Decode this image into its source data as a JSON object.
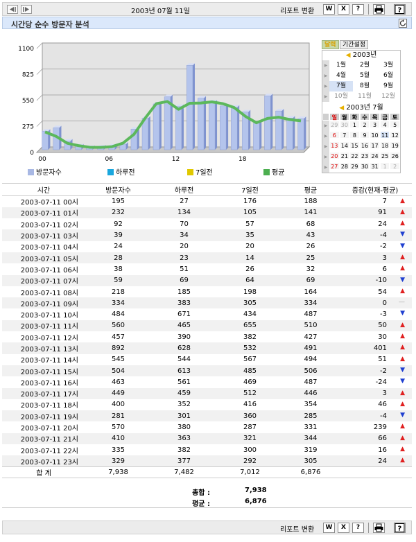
{
  "toolbar": {
    "date": "2003년 07월 11일",
    "report_label": "리포트 변환",
    "buttons": [
      "W",
      "X",
      "?",
      "print",
      "help"
    ]
  },
  "title": "시간당 순수 방문자 분석",
  "chart_data": {
    "type": "bar",
    "x": [
      "00",
      "01",
      "02",
      "03",
      "04",
      "05",
      "06",
      "07",
      "08",
      "09",
      "10",
      "11",
      "12",
      "13",
      "14",
      "15",
      "16",
      "17",
      "18",
      "19",
      "20",
      "21",
      "22",
      "23"
    ],
    "x_ticks": [
      "00",
      "06",
      "12",
      "18"
    ],
    "ylim": [
      0,
      1100
    ],
    "y_ticks": [
      "1100",
      "825",
      "550",
      "275",
      "0"
    ],
    "series": [
      {
        "name": "방문자수",
        "type": "bar",
        "color": "#b4c4ec",
        "values": [
          195,
          232,
          92,
          39,
          24,
          28,
          38,
          59,
          218,
          334,
          484,
          560,
          457,
          892,
          545,
          504,
          463,
          449,
          400,
          281,
          570,
          410,
          335,
          329
        ]
      },
      {
        "name": "하루전",
        "type": "none",
        "color": "#29b6e8",
        "values": [
          27,
          134,
          70,
          34,
          20,
          23,
          51,
          69,
          185,
          383,
          671,
          465,
          390,
          628,
          544,
          613,
          561,
          459,
          352,
          301,
          380,
          363,
          382,
          377
        ]
      },
      {
        "name": "7일전",
        "type": "none",
        "color": "#e6d200",
        "values": [
          176,
          105,
          57,
          35,
          20,
          14,
          26,
          64,
          198,
          305,
          434,
          655,
          382,
          532,
          567,
          485,
          469,
          512,
          416,
          360,
          287,
          321,
          300,
          292
        ]
      },
      {
        "name": "평균",
        "type": "line",
        "color": "#5cb85c",
        "values": [
          188,
          141,
          68,
          43,
          26,
          25,
          32,
          69,
          164,
          334,
          487,
          510,
          427,
          491,
          494,
          506,
          487,
          446,
          354,
          285,
          331,
          344,
          319,
          305
        ]
      }
    ],
    "grid": true
  },
  "legend": [
    {
      "label": "방문자수",
      "color": "#a8b8e4"
    },
    {
      "label": "하루전",
      "color": "#1aa7de"
    },
    {
      "label": "7일전",
      "color": "#e0c800"
    },
    {
      "label": "평균",
      "color": "#4caf50"
    }
  ],
  "calendar": {
    "tabs": [
      "달력",
      "기간설정"
    ],
    "year": "2003년",
    "months": [
      "1월",
      "2월",
      "3월",
      "4월",
      "5월",
      "6월",
      "7월",
      "8월",
      "9월",
      "10월",
      "11월",
      "12월"
    ],
    "selected_month": "7월",
    "month_title": "2003년 7월",
    "weekdays": [
      "일",
      "월",
      "화",
      "수",
      "목",
      "금",
      "토"
    ],
    "days": [
      [
        "29",
        "30",
        "1",
        "2",
        "3",
        "4",
        "5"
      ],
      [
        "6",
        "7",
        "8",
        "9",
        "10",
        "11",
        "12"
      ],
      [
        "13",
        "14",
        "15",
        "16",
        "17",
        "18",
        "19"
      ],
      [
        "20",
        "21",
        "22",
        "23",
        "24",
        "25",
        "26"
      ],
      [
        "27",
        "28",
        "29",
        "30",
        "31",
        "1",
        "2"
      ]
    ]
  },
  "table": {
    "headers": [
      "시간",
      "방문자수",
      "하루전",
      "7일전",
      "평균",
      "증감(현재-평균)"
    ],
    "rows": [
      [
        "2003-07-11 00시",
        "195",
        "27",
        "176",
        "188",
        "7",
        "up"
      ],
      [
        "2003-07-11 01시",
        "232",
        "134",
        "105",
        "141",
        "91",
        "up"
      ],
      [
        "2003-07-11 02시",
        "92",
        "70",
        "57",
        "68",
        "24",
        "up"
      ],
      [
        "2003-07-11 03시",
        "39",
        "34",
        "35",
        "43",
        "-4",
        "down"
      ],
      [
        "2003-07-11 04시",
        "24",
        "20",
        "20",
        "26",
        "-2",
        "down"
      ],
      [
        "2003-07-11 05시",
        "28",
        "23",
        "14",
        "25",
        "3",
        "up"
      ],
      [
        "2003-07-11 06시",
        "38",
        "51",
        "26",
        "32",
        "6",
        "up"
      ],
      [
        "2003-07-11 07시",
        "59",
        "69",
        "64",
        "69",
        "-10",
        "down"
      ],
      [
        "2003-07-11 08시",
        "218",
        "185",
        "198",
        "164",
        "54",
        "up"
      ],
      [
        "2003-07-11 09시",
        "334",
        "383",
        "305",
        "334",
        "0",
        "none"
      ],
      [
        "2003-07-11 10시",
        "484",
        "671",
        "434",
        "487",
        "-3",
        "down"
      ],
      [
        "2003-07-11 11시",
        "560",
        "465",
        "655",
        "510",
        "50",
        "up"
      ],
      [
        "2003-07-11 12시",
        "457",
        "390",
        "382",
        "427",
        "30",
        "up"
      ],
      [
        "2003-07-11 13시",
        "892",
        "628",
        "532",
        "491",
        "401",
        "up"
      ],
      [
        "2003-07-11 14시",
        "545",
        "544",
        "567",
        "494",
        "51",
        "up"
      ],
      [
        "2003-07-11 15시",
        "504",
        "613",
        "485",
        "506",
        "-2",
        "down"
      ],
      [
        "2003-07-11 16시",
        "463",
        "561",
        "469",
        "487",
        "-24",
        "down"
      ],
      [
        "2003-07-11 17시",
        "449",
        "459",
        "512",
        "446",
        "3",
        "up"
      ],
      [
        "2003-07-11 18시",
        "400",
        "352",
        "416",
        "354",
        "46",
        "up"
      ],
      [
        "2003-07-11 19시",
        "281",
        "301",
        "360",
        "285",
        "-4",
        "down"
      ],
      [
        "2003-07-11 20시",
        "570",
        "380",
        "287",
        "331",
        "239",
        "up"
      ],
      [
        "2003-07-11 21시",
        "410",
        "363",
        "321",
        "344",
        "66",
        "up"
      ],
      [
        "2003-07-11 22시",
        "335",
        "382",
        "300",
        "319",
        "16",
        "up"
      ],
      [
        "2003-07-11 23시",
        "329",
        "377",
        "292",
        "305",
        "24",
        "up"
      ]
    ],
    "total": [
      "합 계",
      "7,938",
      "7,482",
      "7,012",
      "6,876",
      ""
    ]
  },
  "summary": {
    "total_label": "총합 :",
    "total_value": "7,938",
    "avg_label": "평균 :",
    "avg_value": "6,876"
  },
  "colors": {
    "up": "#e02020",
    "down": "#1f3fd0",
    "none": "#aaaaaa"
  }
}
